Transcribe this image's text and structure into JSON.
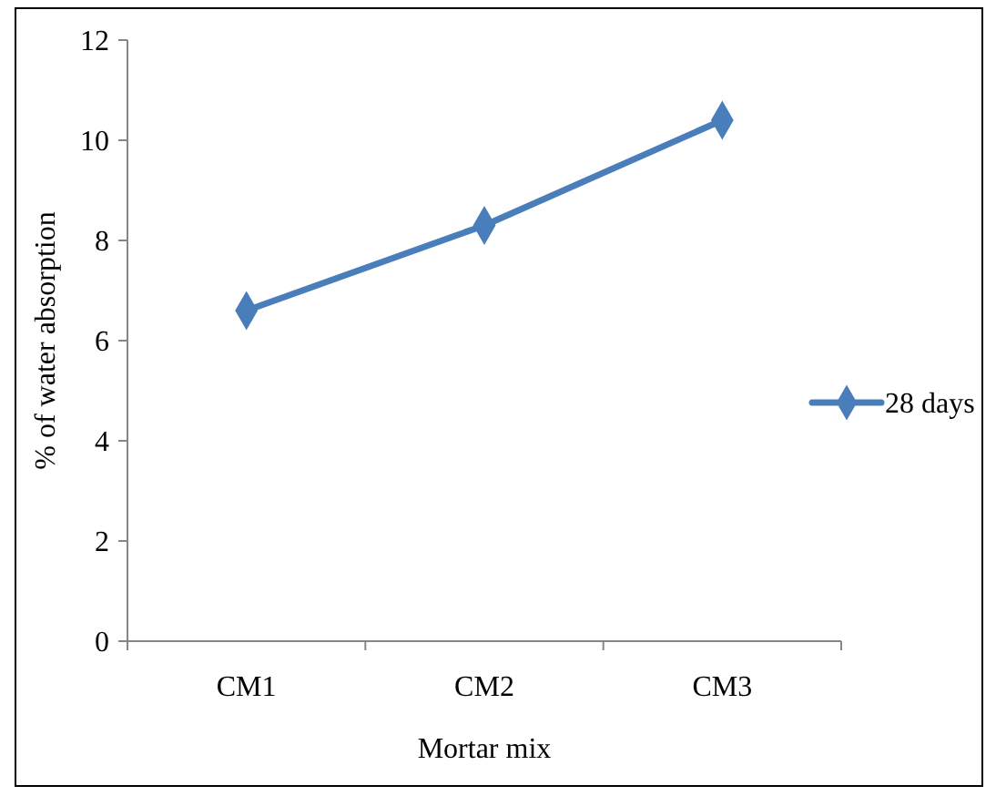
{
  "chart_data": {
    "type": "line",
    "xlabel": "Mortar mix",
    "ylabel": "% of water absorption",
    "categories": [
      "CM1",
      "CM2",
      "CM3"
    ],
    "series": [
      {
        "name": "28 days",
        "color": "#4a7ebb",
        "values": [
          6.6,
          8.3,
          10.4
        ]
      }
    ],
    "ylim": [
      0,
      12
    ],
    "yticks": [
      0,
      2,
      4,
      6,
      8,
      10,
      12
    ],
    "grid": false,
    "legend": "right",
    "marker": "diamond",
    "line_style": "solid"
  }
}
